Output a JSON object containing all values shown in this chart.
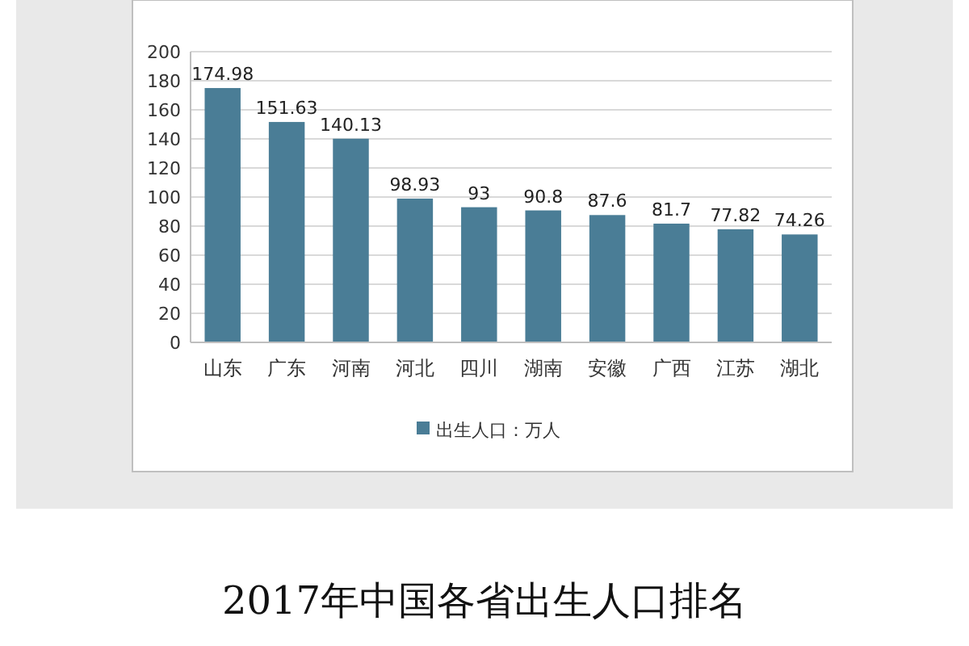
{
  "chart_data": {
    "type": "bar",
    "title": "2017年中国各省出生人口排名",
    "categories": [
      "山东",
      "广东",
      "河南",
      "河北",
      "四川",
      "湖南",
      "安徽",
      "广西",
      "江苏",
      "湖北"
    ],
    "series": [
      {
        "name": "出生人口：万人",
        "color": "#4a7d96",
        "values": [
          174.98,
          151.63,
          140.13,
          98.93,
          93,
          90.8,
          87.6,
          81.7,
          77.82,
          74.26
        ]
      }
    ],
    "ylim": [
      0,
      200
    ],
    "yticks": [
      0,
      20,
      40,
      60,
      80,
      100,
      120,
      140,
      160,
      180,
      200
    ],
    "grid": "y",
    "legend": "bottom",
    "data_labels": true
  }
}
